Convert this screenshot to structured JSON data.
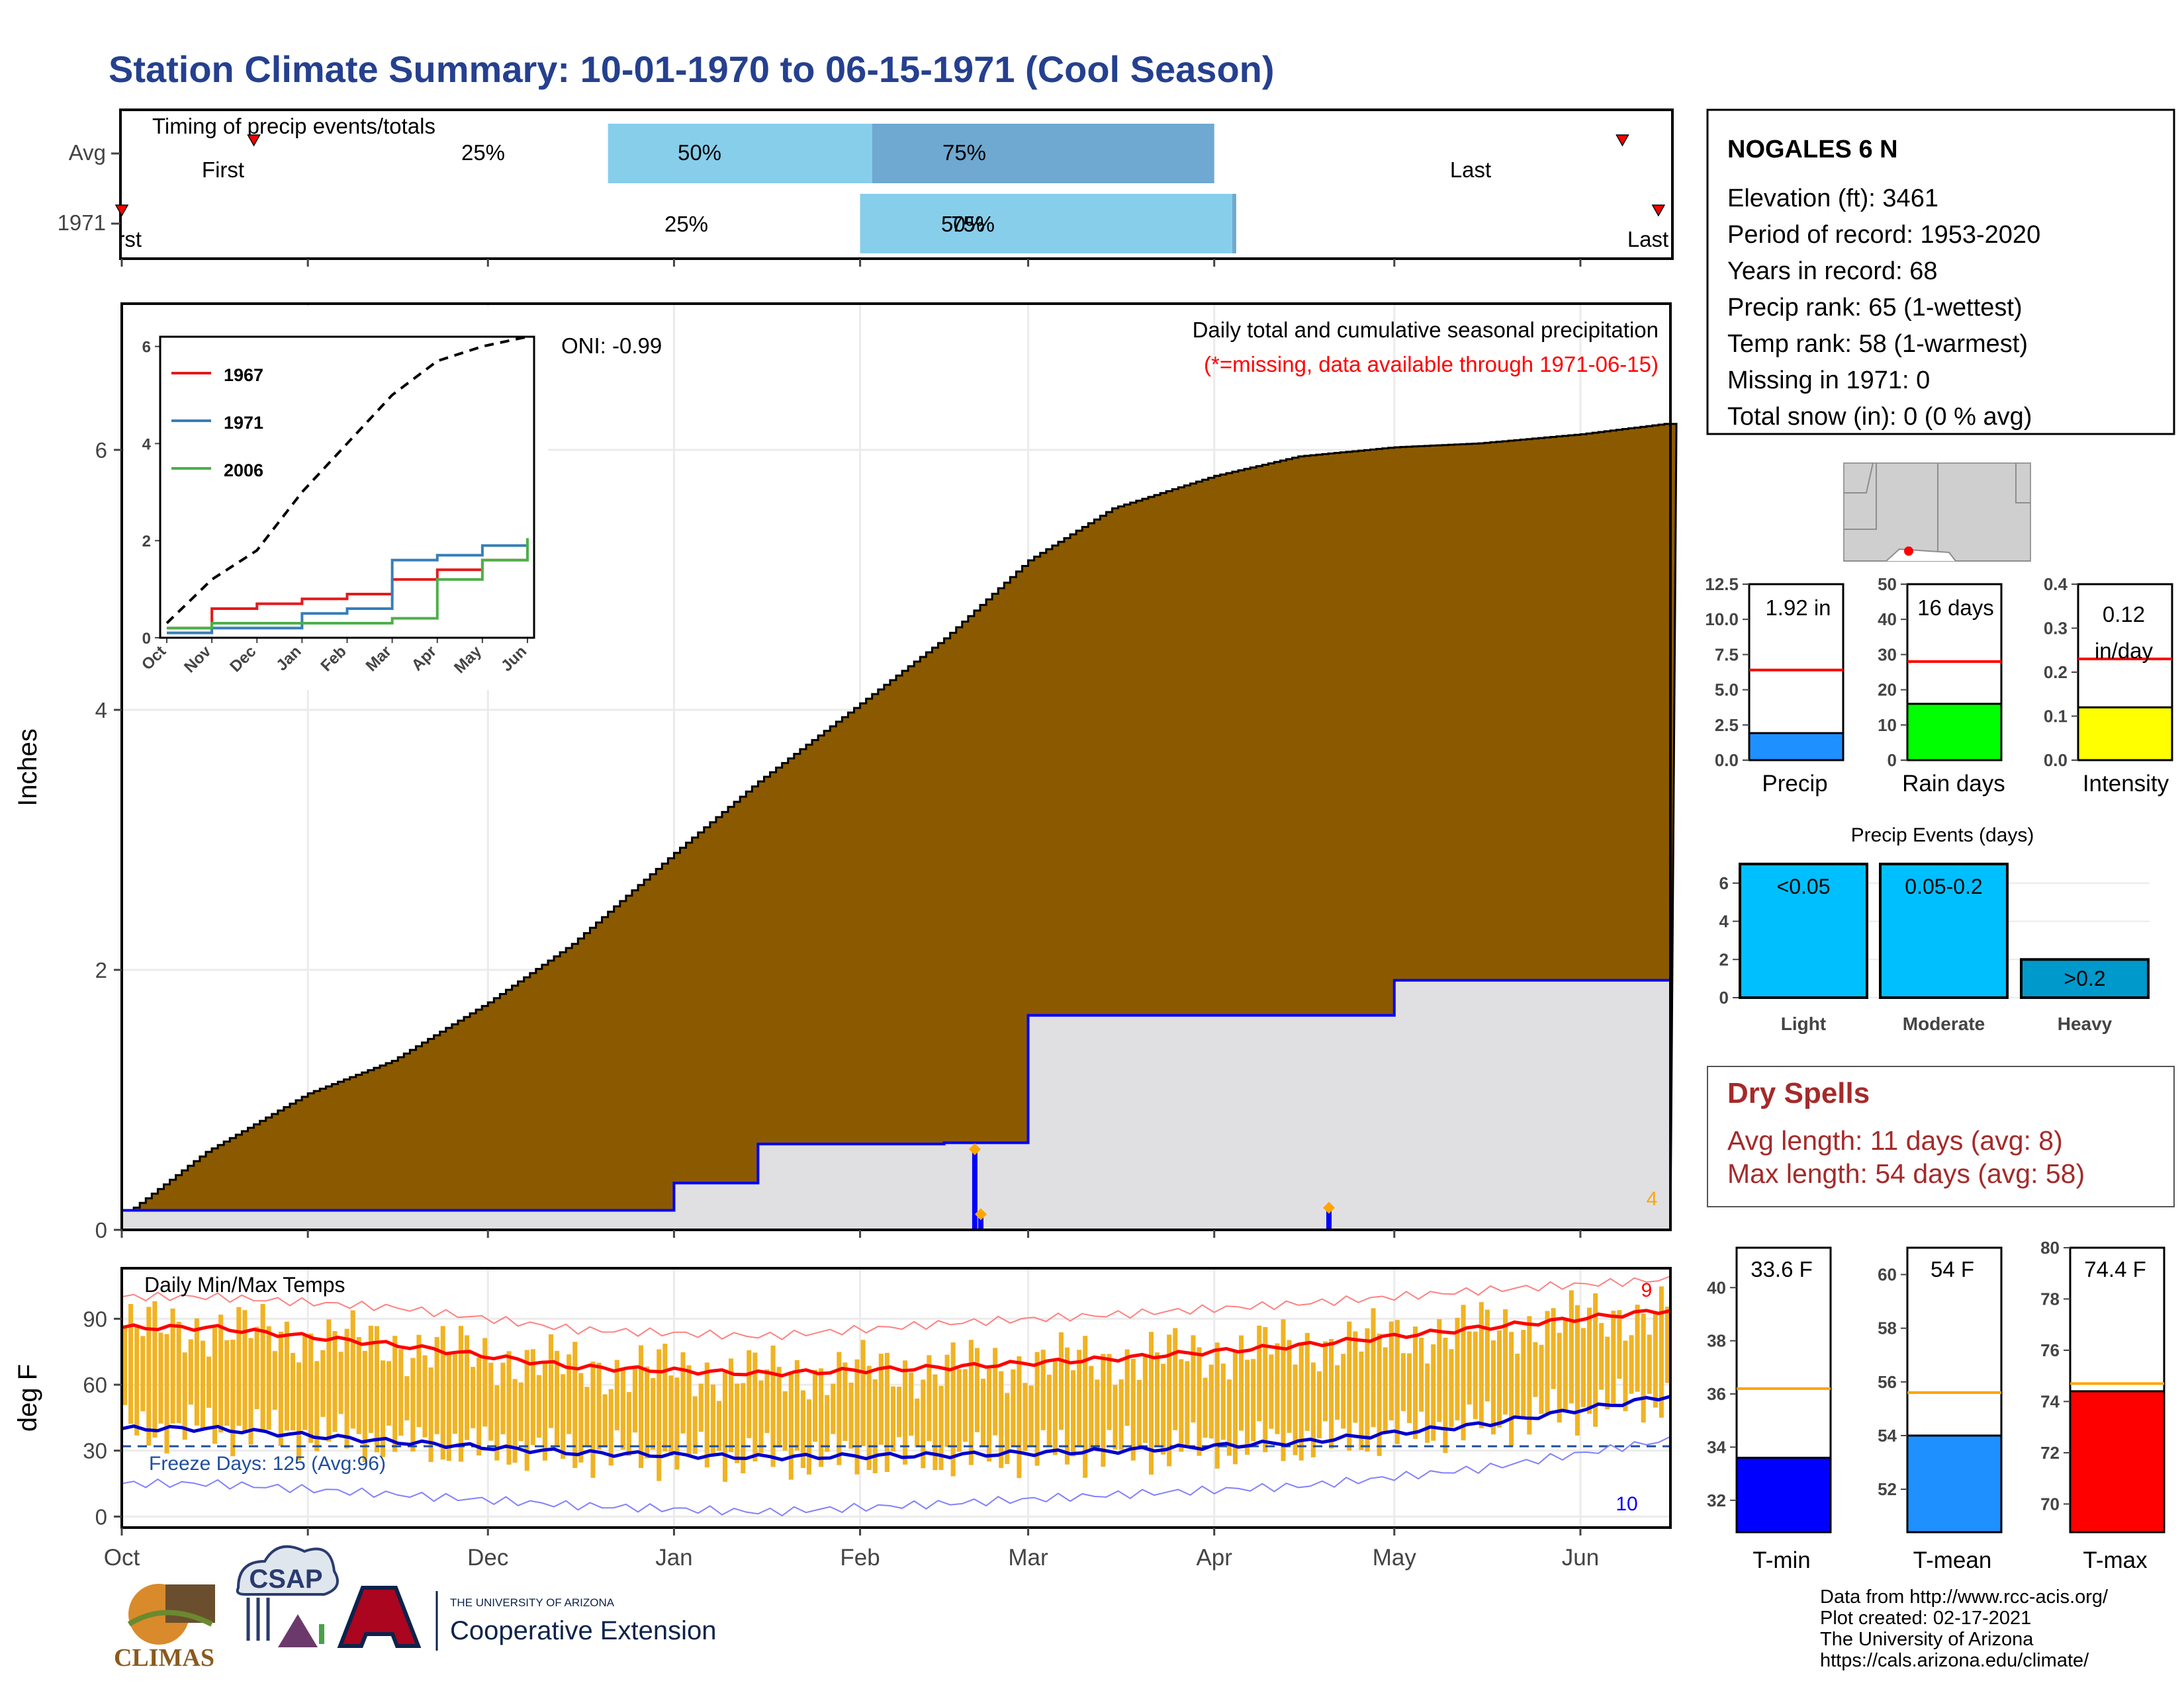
{
  "title": "Station Climate Summary: 10-01-1970 to 06-15-1971 (Cool Season)",
  "timing": {
    "panel_title": "Timing of precip events/totals",
    "rows": [
      {
        "label": "Avg",
        "q25": "25%",
        "q50": "50%",
        "q75": "75%",
        "first": "First",
        "last": "Last"
      },
      {
        "label": "1971",
        "q25": "25%",
        "q50": "50%",
        "q75": "75%",
        "first": "First",
        "last": "Last"
      }
    ]
  },
  "main": {
    "ylabel": "Inches",
    "yticks": [
      "0",
      "2",
      "4",
      "6"
    ],
    "oni": "ONI: -0.99",
    "caption": "Daily total and cumulative seasonal precipitation",
    "missing_note": "(*=missing, data available through 1971-06-15)",
    "corner_count": "4"
  },
  "inset": {
    "yticks": [
      "0",
      "2",
      "4",
      "6"
    ],
    "months": [
      "Oct",
      "Nov",
      "Dec",
      "Jan",
      "Feb",
      "Mar",
      "Apr",
      "May",
      "Jun"
    ],
    "legend": [
      {
        "name": "1967",
        "color": "#e41a1c"
      },
      {
        "name": "1971",
        "color": "#377eb8"
      },
      {
        "name": "2006",
        "color": "#4daf4a"
      }
    ]
  },
  "temps": {
    "panel_title": "Daily Min/Max Temps",
    "ylabel": "deg F",
    "yticks": [
      "0",
      "30",
      "60",
      "90"
    ],
    "freeze": "Freeze Days: 125 (Avg:96)",
    "count_hot": "9",
    "count_cold": "10",
    "months": [
      "Oct",
      "Nov",
      "Dec",
      "Jan",
      "Feb",
      "Mar",
      "Apr",
      "May",
      "Jun"
    ]
  },
  "station": {
    "name": "NOGALES 6 N",
    "lines": [
      "Elevation (ft): 3461",
      "Period of record: 1953-2020",
      "Years in record: 68",
      "Precip rank: 65 (1-wettest)",
      "Temp rank: 58 (1-warmest)",
      "Missing in 1971: 0",
      "Total snow (in): 0 (0 % avg)"
    ]
  },
  "minibars": [
    {
      "label": "Precip",
      "value_text": "1.92 in",
      "color": "#1e90ff",
      "ticks": [
        "0.0",
        "2.5",
        "5.0",
        "7.5",
        "10.0",
        "12.5"
      ]
    },
    {
      "label": "Rain days",
      "value_text": "16 days",
      "color": "#00ff00",
      "ticks": [
        "0",
        "10",
        "20",
        "30",
        "40",
        "50"
      ]
    },
    {
      "label": "Intensity",
      "value_text": "0.12",
      "value_text2": "in/day",
      "color": "#ffff00",
      "ticks": [
        "0.0",
        "0.1",
        "0.2",
        "0.3",
        "0.4"
      ]
    }
  ],
  "events": {
    "title": "Precip Events (days)",
    "ticks": [
      "0",
      "2",
      "4",
      "6"
    ],
    "bars": [
      {
        "label": "Light",
        "inner": "<0.05"
      },
      {
        "label": "Moderate",
        "inner": "0.05-0.2"
      },
      {
        "label": "Heavy",
        "inner": ">0.2"
      }
    ]
  },
  "dry_spells": {
    "title": "Dry Spells",
    "avg": "Avg length: 11 days (avg: 8)",
    "max": "Max length: 54 days (avg: 58)"
  },
  "tempbars": [
    {
      "label": "T-min",
      "value_text": "33.6 F",
      "color": "#0000ff",
      "ticks": [
        "32",
        "34",
        "36",
        "38",
        "40"
      ]
    },
    {
      "label": "T-mean",
      "value_text": "54 F",
      "color": "#1e90ff",
      "ticks": [
        "52",
        "54",
        "56",
        "58",
        "60"
      ]
    },
    {
      "label": "T-max",
      "value_text": "74.4 F",
      "color": "#ff0000",
      "ticks": [
        "70",
        "72",
        "74",
        "76",
        "78",
        "80"
      ]
    }
  ],
  "logos": {
    "climas": "CLIMAS",
    "csap": "CSAP",
    "ua_small": "THE UNIVERSITY OF ARIZONA",
    "ua_big": "Cooperative Extension"
  },
  "footer": [
    "Data from http://www.rcc-acis.org/",
    "Plot created: 02-17-2021",
    "The University of Arizona",
    "https://cals.arizona.edu/climate/"
  ],
  "chart_data": [
    {
      "type": "bar",
      "title": "Timing of precip events/totals",
      "categories": [
        "Avg",
        "1971"
      ],
      "x_units": "day of season (Oct 1 = 0)",
      "series": [
        {
          "name": "25%",
          "values": [
            81,
            123
          ]
        },
        {
          "name": "50%",
          "values": [
            125,
            185
          ]
        },
        {
          "name": "75%",
          "values": [
            182,
            185
          ]
        },
        {
          "name": "First",
          "values": [
            22,
            0
          ]
        },
        {
          "name": "Last",
          "values": [
            250,
            256
          ]
        }
      ]
    },
    {
      "type": "area",
      "title": "Daily total and cumulative seasonal precipitation",
      "ylabel": "Inches",
      "ylim": [
        0,
        6.6
      ],
      "x": [
        "1970-10-01",
        "1970-10-15",
        "1970-11-01",
        "1970-11-15",
        "1970-12-01",
        "1970-12-15",
        "1971-01-01",
        "1971-01-15",
        "1971-02-01",
        "1971-02-15",
        "1971-03-01",
        "1971-03-15",
        "1971-04-01",
        "1971-04-15",
        "1971-05-01",
        "1971-05-15",
        "1971-06-01",
        "1971-06-15"
      ],
      "series": [
        {
          "name": "Avg cumulative",
          "values": [
            0.1,
            0.6,
            1.05,
            1.3,
            1.75,
            2.2,
            2.9,
            3.45,
            4.05,
            4.55,
            5.15,
            5.55,
            5.8,
            5.95,
            6.02,
            6.05,
            6.12,
            6.2
          ]
        },
        {
          "name": "1971 cumulative",
          "values": [
            0.15,
            0.15,
            0.15,
            0.15,
            0.15,
            0.15,
            0.36,
            0.66,
            0.66,
            0.67,
            1.65,
            1.65,
            1.65,
            1.65,
            1.92,
            1.92,
            1.92,
            1.92
          ]
        }
      ],
      "events": [
        {
          "x": "1971-02-20",
          "y": 0.62
        },
        {
          "x": "1971-02-21",
          "y": 0.12
        },
        {
          "x": "1971-04-20",
          "y": 0.17
        }
      ]
    },
    {
      "type": "line",
      "title": "Inset cumulative precip",
      "x": [
        "Oct",
        "Nov",
        "Dec",
        "Jan",
        "Feb",
        "Mar",
        "Apr",
        "May",
        "Jun"
      ],
      "ylim": [
        0,
        6.2
      ],
      "series": [
        {
          "name": "Avg",
          "values": [
            0.3,
            1.2,
            1.8,
            3.0,
            4.0,
            5.0,
            5.7,
            6.0,
            6.2
          ]
        },
        {
          "name": "1967",
          "values": [
            0.2,
            0.6,
            0.7,
            0.8,
            0.9,
            1.2,
            1.4,
            1.6,
            1.8
          ]
        },
        {
          "name": "1971",
          "values": [
            0.1,
            0.2,
            0.2,
            0.5,
            0.6,
            1.6,
            1.7,
            1.9,
            1.95
          ]
        },
        {
          "name": "2006",
          "values": [
            0.2,
            0.3,
            0.3,
            0.3,
            0.3,
            0.4,
            1.2,
            1.6,
            2.05
          ]
        }
      ]
    },
    {
      "type": "bar",
      "title": "Daily Min/Max Temps",
      "ylabel": "deg F",
      "ylim": [
        -5,
        113
      ],
      "x": [
        "Oct",
        "Nov",
        "Dec",
        "Jan",
        "Feb",
        "Mar",
        "Apr",
        "May",
        "Jun"
      ],
      "series": [
        {
          "name": "Avg max",
          "values": [
            86,
            78,
            68,
            65,
            68,
            72,
            78,
            86,
            94
          ]
        },
        {
          "name": "Avg min",
          "values": [
            40,
            34,
            29,
            27,
            28,
            30,
            34,
            42,
            55
          ]
        },
        {
          "name": "Record max",
          "values": [
            100,
            95,
            85,
            82,
            88,
            92,
            97,
            103,
            108
          ]
        },
        {
          "name": "Record min",
          "values": [
            15,
            10,
            5,
            2,
            6,
            10,
            14,
            22,
            35
          ]
        }
      ],
      "freeze_line": 32
    },
    {
      "type": "bar",
      "title": "Precip / Rain days / Intensity",
      "categories": [
        "Precip",
        "Rain days",
        "Intensity"
      ],
      "values": [
        1.92,
        16,
        0.12
      ],
      "averages": [
        6.4,
        28,
        0.23
      ]
    },
    {
      "type": "bar",
      "title": "Precip Events (days)",
      "categories": [
        "Light",
        "Moderate",
        "Heavy"
      ],
      "values": [
        7,
        7,
        2
      ],
      "ylim": [
        0,
        7
      ]
    },
    {
      "type": "bar",
      "title": "Seasonal temperatures",
      "categories": [
        "T-min",
        "T-mean",
        "T-max"
      ],
      "values": [
        33.6,
        54,
        74.4
      ],
      "averages": [
        36.2,
        55.6,
        74.7
      ]
    }
  ]
}
